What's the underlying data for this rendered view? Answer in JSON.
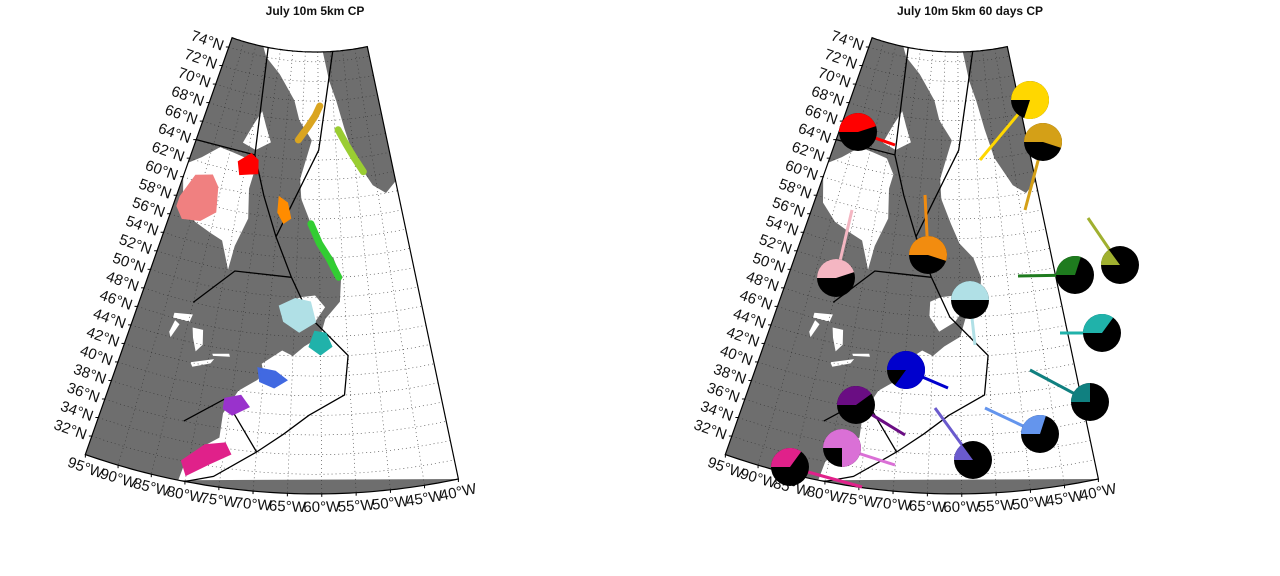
{
  "map_data": {
    "panels": [
      {
        "title": "July 10m 5km CP"
      },
      {
        "title": "July 10m 5km 60 days CP",
        "pies": [
          {
            "color": "#ff0000",
            "value": 45
          },
          {
            "color": "#ffd700",
            "value": 80
          },
          {
            "color": "#d4a017",
            "value": 55
          },
          {
            "color": "#f4b6c2",
            "value": 45
          },
          {
            "color": "#f28c0f",
            "value": 55
          },
          {
            "color": "#b0e0e6",
            "value": 50
          },
          {
            "color": "#1e7b1e",
            "value": 30
          },
          {
            "color": "#a0b030",
            "value": 15
          },
          {
            "color": "#20b2aa",
            "value": 35
          },
          {
            "color": "#0000cd",
            "value": 85
          },
          {
            "color": "#108080",
            "value": 25
          },
          {
            "color": "#6a0d83",
            "value": 40
          },
          {
            "color": "#6495ed",
            "value": 30
          },
          {
            "color": "#da70d6",
            "value": 75
          },
          {
            "color": "#6a5acd",
            "value": 15
          },
          {
            "color": "#e0218a",
            "value": 35
          }
        ]
      }
    ],
    "lat_ticks": [
      {
        "value": 74,
        "label": "74°N"
      },
      {
        "value": 72,
        "label": "72°N"
      },
      {
        "value": 70,
        "label": "70°N"
      },
      {
        "value": 68,
        "label": "68°N"
      },
      {
        "value": 66,
        "label": "66°N"
      },
      {
        "value": 64,
        "label": "64°N"
      },
      {
        "value": 62,
        "label": "62°N"
      },
      {
        "value": 60,
        "label": "60°N"
      },
      {
        "value": 58,
        "label": "58°N"
      },
      {
        "value": 56,
        "label": "56°N"
      },
      {
        "value": 54,
        "label": "54°N"
      },
      {
        "value": 52,
        "label": "52°N"
      },
      {
        "value": 50,
        "label": "50°N"
      },
      {
        "value": 48,
        "label": "48°N"
      },
      {
        "value": 46,
        "label": "46°N"
      },
      {
        "value": 44,
        "label": "44°N"
      },
      {
        "value": 42,
        "label": "42°N"
      },
      {
        "value": 40,
        "label": "40°N"
      },
      {
        "value": 38,
        "label": "38°N"
      },
      {
        "value": 36,
        "label": "36°N"
      },
      {
        "value": 34,
        "label": "34°N"
      },
      {
        "value": 32,
        "label": "32°N"
      }
    ],
    "lon_ticks": [
      {
        "value": -95,
        "label": "95°W"
      },
      {
        "value": -90,
        "label": "90°W"
      },
      {
        "value": -85,
        "label": "85°W"
      },
      {
        "value": -80,
        "label": "80°W"
      },
      {
        "value": -75,
        "label": "75°W"
      },
      {
        "value": -70,
        "label": "70°W"
      },
      {
        "value": -65,
        "label": "65°W"
      },
      {
        "value": -60,
        "label": "60°W"
      },
      {
        "value": -55,
        "label": "55°W"
      },
      {
        "value": -50,
        "label": "50°W"
      },
      {
        "value": -45,
        "label": "45°W"
      },
      {
        "value": -40,
        "label": "40°W"
      }
    ]
  }
}
